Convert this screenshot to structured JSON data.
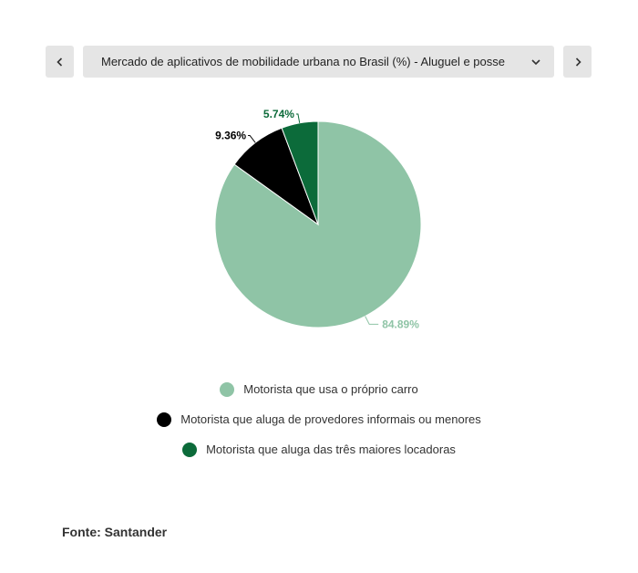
{
  "controls": {
    "prev_icon": "chevron-left-icon",
    "next_icon": "chevron-right-icon",
    "dropdown_icon": "chevron-down-icon",
    "selected_chart": "Mercado de aplicativos de mobilidade urbana no Brasil (%) - Aluguel e posse"
  },
  "chart_data": {
    "type": "pie",
    "title": "",
    "slices": [
      {
        "label": "Motorista que usa o próprio carro",
        "value": 84.89,
        "display": "84.89%",
        "color": "#8fc4a6"
      },
      {
        "label": "Motorista que aluga de provedores informais ou menores",
        "value": 9.36,
        "display": "9.36%",
        "color": "#000000"
      },
      {
        "label": "Motorista que aluga das três maiores locadoras",
        "value": 5.74,
        "display": "5.74%",
        "color": "#0c6b3a"
      }
    ],
    "start_angle": "12 o'clock",
    "direction": "clockwise",
    "legend_position": "bottom"
  },
  "source": "Fonte: Santander"
}
